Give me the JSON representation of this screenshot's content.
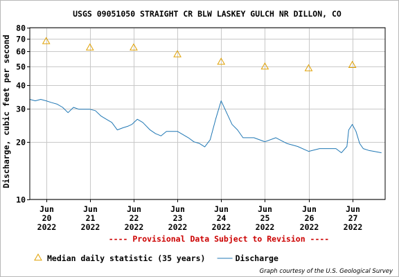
{
  "chart_data": {
    "type": "line",
    "title": "USGS 09051050 STRAIGHT CR BLW LASKEY GULCH NR DILLON, CO",
    "ylabel": "Discharge, cubic feet per second",
    "y_scale": "log",
    "ylim": [
      10,
      80
    ],
    "y_ticks": [
      10,
      20,
      30,
      40,
      50,
      60,
      70,
      80
    ],
    "x_range": [
      "2022-06-19T15:00",
      "2022-06-27T18:00"
    ],
    "x_ticks": [
      {
        "x": "2022-06-20T00:00",
        "label": [
          "Jun",
          "20",
          "2022"
        ]
      },
      {
        "x": "2022-06-21T00:00",
        "label": [
          "Jun",
          "21",
          "2022"
        ]
      },
      {
        "x": "2022-06-22T00:00",
        "label": [
          "Jun",
          "22",
          "2022"
        ]
      },
      {
        "x": "2022-06-23T00:00",
        "label": [
          "Jun",
          "23",
          "2022"
        ]
      },
      {
        "x": "2022-06-24T00:00",
        "label": [
          "Jun",
          "24",
          "2022"
        ]
      },
      {
        "x": "2022-06-25T00:00",
        "label": [
          "Jun",
          "25",
          "2022"
        ]
      },
      {
        "x": "2022-06-26T00:00",
        "label": [
          "Jun",
          "26",
          "2022"
        ]
      },
      {
        "x": "2022-06-27T00:00",
        "label": [
          "Jun",
          "27",
          "2022"
        ]
      }
    ],
    "grid": true,
    "legend_position": "bottom-left",
    "series": [
      {
        "name": "Median daily statistic (35 years)",
        "type": "scatter",
        "marker": "triangle",
        "color": "#e0a000",
        "points": [
          {
            "x": "2022-06-20T00:00",
            "y": 68
          },
          {
            "x": "2022-06-21T00:00",
            "y": 63
          },
          {
            "x": "2022-06-22T00:00",
            "y": 63
          },
          {
            "x": "2022-06-23T00:00",
            "y": 58
          },
          {
            "x": "2022-06-24T00:00",
            "y": 53
          },
          {
            "x": "2022-06-25T00:00",
            "y": 50
          },
          {
            "x": "2022-06-26T00:00",
            "y": 49
          },
          {
            "x": "2022-06-27T00:00",
            "y": 51
          }
        ]
      },
      {
        "name": "Discharge",
        "type": "line",
        "color": "#1f77b4",
        "points": [
          {
            "x": "2022-06-19T15:00",
            "y": 33.6
          },
          {
            "x": "2022-06-19T18:00",
            "y": 33.0
          },
          {
            "x": "2022-06-19T21:00",
            "y": 33.6
          },
          {
            "x": "2022-06-20T00:00",
            "y": 33.0
          },
          {
            "x": "2022-06-20T03:00",
            "y": 32.3
          },
          {
            "x": "2022-06-20T06:00",
            "y": 31.7
          },
          {
            "x": "2022-06-20T09:00",
            "y": 30.5
          },
          {
            "x": "2022-06-20T12:00",
            "y": 28.6
          },
          {
            "x": "2022-06-20T15:00",
            "y": 30.5
          },
          {
            "x": "2022-06-20T18:00",
            "y": 29.8
          },
          {
            "x": "2022-06-21T00:00",
            "y": 29.8
          },
          {
            "x": "2022-06-21T03:00",
            "y": 29.3
          },
          {
            "x": "2022-06-21T06:00",
            "y": 27.5
          },
          {
            "x": "2022-06-21T09:00",
            "y": 26.4
          },
          {
            "x": "2022-06-21T12:00",
            "y": 25.4
          },
          {
            "x": "2022-06-21T15:00",
            "y": 23.2
          },
          {
            "x": "2022-06-21T18:00",
            "y": 23.8
          },
          {
            "x": "2022-06-21T21:00",
            "y": 24.3
          },
          {
            "x": "2022-06-21T23:00",
            "y": 24.8
          },
          {
            "x": "2022-06-22T02:00",
            "y": 26.4
          },
          {
            "x": "2022-06-22T05:00",
            "y": 25.4
          },
          {
            "x": "2022-06-22T09:00",
            "y": 23.2
          },
          {
            "x": "2022-06-22T12:00",
            "y": 22.2
          },
          {
            "x": "2022-06-22T15:00",
            "y": 21.6
          },
          {
            "x": "2022-06-22T18:00",
            "y": 22.8
          },
          {
            "x": "2022-06-23T00:00",
            "y": 22.8
          },
          {
            "x": "2022-06-23T06:00",
            "y": 21.1
          },
          {
            "x": "2022-06-23T09:00",
            "y": 20.1
          },
          {
            "x": "2022-06-23T12:00",
            "y": 19.7
          },
          {
            "x": "2022-06-23T15:00",
            "y": 18.9
          },
          {
            "x": "2022-06-23T18:00",
            "y": 20.6
          },
          {
            "x": "2022-06-23T21:00",
            "y": 26.4
          },
          {
            "x": "2022-06-24T00:00",
            "y": 33.0
          },
          {
            "x": "2022-06-24T03:00",
            "y": 28.6
          },
          {
            "x": "2022-06-24T06:00",
            "y": 24.8
          },
          {
            "x": "2022-06-24T09:00",
            "y": 23.2
          },
          {
            "x": "2022-06-24T12:00",
            "y": 21.1
          },
          {
            "x": "2022-06-24T18:00",
            "y": 21.1
          },
          {
            "x": "2022-06-25T00:00",
            "y": 20.1
          },
          {
            "x": "2022-06-25T06:00",
            "y": 21.1
          },
          {
            "x": "2022-06-25T12:00",
            "y": 19.7
          },
          {
            "x": "2022-06-25T18:00",
            "y": 19.0
          },
          {
            "x": "2022-06-26T00:00",
            "y": 17.9
          },
          {
            "x": "2022-06-26T06:00",
            "y": 18.5
          },
          {
            "x": "2022-06-26T12:00",
            "y": 18.5
          },
          {
            "x": "2022-06-26T15:00",
            "y": 18.5
          },
          {
            "x": "2022-06-26T18:00",
            "y": 17.6
          },
          {
            "x": "2022-06-26T21:00",
            "y": 19.0
          },
          {
            "x": "2022-06-26T22:00",
            "y": 23.2
          },
          {
            "x": "2022-06-27T00:00",
            "y": 24.8
          },
          {
            "x": "2022-06-27T02:00",
            "y": 22.8
          },
          {
            "x": "2022-06-27T04:00",
            "y": 19.7
          },
          {
            "x": "2022-06-27T06:00",
            "y": 18.5
          },
          {
            "x": "2022-06-27T09:00",
            "y": 18.1
          },
          {
            "x": "2022-06-27T12:00",
            "y": 17.9
          },
          {
            "x": "2022-06-27T16:00",
            "y": 17.6
          }
        ]
      }
    ],
    "annotation": "---- Provisional Data Subject to Revision ----",
    "credit": "Graph courtesy of the U.S. Geological Survey"
  },
  "colors": {
    "discharge_line": "#1f77b4",
    "median_marker": "#e0a000",
    "provisional_text": "#cc0000",
    "grid": "#c8c8c8"
  }
}
